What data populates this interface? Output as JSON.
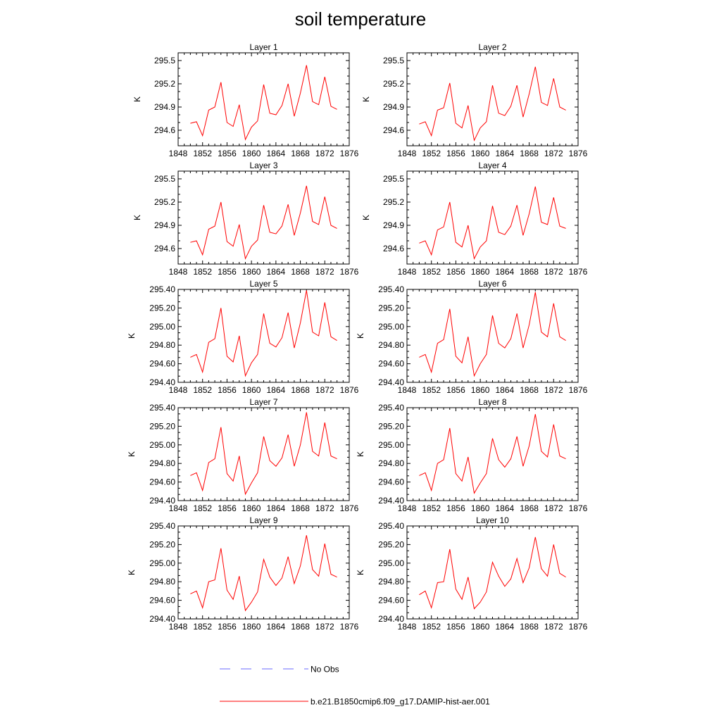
{
  "title": "soil temperature",
  "legend": [
    {
      "label": "No Obs",
      "color": "#6a6aff",
      "style": "dashed"
    },
    {
      "label": "b.e21.B1850cmip6.f09_g17.DAMIP-hist-aer.001",
      "color": "#ff0000",
      "style": "solid"
    }
  ],
  "chart_data": [
    {
      "type": "line",
      "title": "Layer 1",
      "ylabel": "K",
      "xlabel": "",
      "xlim": [
        1848,
        1876
      ],
      "ylim": [
        294.4,
        295.6
      ],
      "x_ticks": [
        "1848",
        "1852",
        "1856",
        "1860",
        "1864",
        "1868",
        "1872",
        "1876"
      ],
      "y_ticks": [
        "294.6",
        "294.9",
        "295.2",
        "295.5"
      ],
      "series": [
        {
          "color": "#ff0000",
          "x": [
            1850,
            1851,
            1852,
            1853,
            1854,
            1855,
            1856,
            1857,
            1858,
            1859,
            1860,
            1861,
            1862,
            1863,
            1864,
            1865,
            1866,
            1867,
            1868,
            1869,
            1870,
            1871,
            1872,
            1873,
            1874
          ],
          "y": [
            294.69,
            294.71,
            294.53,
            294.86,
            294.9,
            295.22,
            294.7,
            294.65,
            294.93,
            294.48,
            294.64,
            294.72,
            295.19,
            294.82,
            294.8,
            294.92,
            295.2,
            294.78,
            295.08,
            295.44,
            294.97,
            294.93,
            295.29,
            294.91,
            294.87
          ]
        }
      ]
    },
    {
      "type": "line",
      "title": "Layer 2",
      "ylabel": "K",
      "xlabel": "",
      "xlim": [
        1848,
        1876
      ],
      "ylim": [
        294.4,
        295.6
      ],
      "x_ticks": [
        "1848",
        "1852",
        "1856",
        "1860",
        "1864",
        "1868",
        "1872",
        "1876"
      ],
      "y_ticks": [
        "294.6",
        "294.9",
        "295.2",
        "295.5"
      ],
      "series": [
        {
          "color": "#ff0000",
          "x": [
            1850,
            1851,
            1852,
            1853,
            1854,
            1855,
            1856,
            1857,
            1858,
            1859,
            1860,
            1861,
            1862,
            1863,
            1864,
            1865,
            1866,
            1867,
            1868,
            1869,
            1870,
            1871,
            1872,
            1873,
            1874
          ],
          "y": [
            294.68,
            294.71,
            294.53,
            294.86,
            294.89,
            295.21,
            294.69,
            294.63,
            294.92,
            294.47,
            294.63,
            294.71,
            295.18,
            294.82,
            294.79,
            294.91,
            295.18,
            294.77,
            295.07,
            295.42,
            294.96,
            294.92,
            295.27,
            294.9,
            294.86
          ]
        }
      ]
    },
    {
      "type": "line",
      "title": "Layer 3",
      "ylabel": "K",
      "xlabel": "",
      "xlim": [
        1848,
        1876
      ],
      "ylim": [
        294.4,
        295.6
      ],
      "x_ticks": [
        "1848",
        "1852",
        "1856",
        "1860",
        "1864",
        "1868",
        "1872",
        "1876"
      ],
      "y_ticks": [
        "294.6",
        "294.9",
        "295.2",
        "295.5"
      ],
      "series": [
        {
          "color": "#ff0000",
          "x": [
            1850,
            1851,
            1852,
            1853,
            1854,
            1855,
            1856,
            1857,
            1858,
            1859,
            1860,
            1861,
            1862,
            1863,
            1864,
            1865,
            1866,
            1867,
            1868,
            1869,
            1870,
            1871,
            1872,
            1873,
            1874
          ],
          "y": [
            294.68,
            294.7,
            294.52,
            294.85,
            294.89,
            295.2,
            294.69,
            294.63,
            294.91,
            294.47,
            294.63,
            294.71,
            295.16,
            294.81,
            294.79,
            294.89,
            295.17,
            294.77,
            295.06,
            295.41,
            294.95,
            294.91,
            295.27,
            294.9,
            294.86
          ]
        }
      ]
    },
    {
      "type": "line",
      "title": "Layer 4",
      "ylabel": "K",
      "xlabel": "",
      "xlim": [
        1848,
        1876
      ],
      "ylim": [
        294.4,
        295.6
      ],
      "x_ticks": [
        "1848",
        "1852",
        "1856",
        "1860",
        "1864",
        "1868",
        "1872",
        "1876"
      ],
      "y_ticks": [
        "294.6",
        "294.9",
        "295.2",
        "295.5"
      ],
      "series": [
        {
          "color": "#ff0000",
          "x": [
            1850,
            1851,
            1852,
            1853,
            1854,
            1855,
            1856,
            1857,
            1858,
            1859,
            1860,
            1861,
            1862,
            1863,
            1864,
            1865,
            1866,
            1867,
            1868,
            1869,
            1870,
            1871,
            1872,
            1873,
            1874
          ],
          "y": [
            294.67,
            294.7,
            294.52,
            294.84,
            294.88,
            295.2,
            294.68,
            294.62,
            294.9,
            294.47,
            294.62,
            294.7,
            295.15,
            294.81,
            294.78,
            294.89,
            295.16,
            294.77,
            295.05,
            295.4,
            294.94,
            294.91,
            295.26,
            294.89,
            294.86
          ]
        }
      ]
    },
    {
      "type": "line",
      "title": "Layer 5",
      "ylabel": "K",
      "xlabel": "",
      "xlim": [
        1848,
        1876
      ],
      "ylim": [
        294.4,
        295.4
      ],
      "x_ticks": [
        "1848",
        "1852",
        "1856",
        "1860",
        "1864",
        "1868",
        "1872",
        "1876"
      ],
      "y_ticks": [
        "294.40",
        "294.60",
        "294.80",
        "295.00",
        "295.20",
        "295.40"
      ],
      "series": [
        {
          "color": "#ff0000",
          "x": [
            1850,
            1851,
            1852,
            1853,
            1854,
            1855,
            1856,
            1857,
            1858,
            1859,
            1860,
            1861,
            1862,
            1863,
            1864,
            1865,
            1866,
            1867,
            1868,
            1869,
            1870,
            1871,
            1872,
            1873,
            1874
          ],
          "y": [
            294.67,
            294.7,
            294.51,
            294.83,
            294.87,
            295.2,
            294.68,
            294.62,
            294.9,
            294.47,
            294.61,
            294.7,
            295.14,
            294.82,
            294.78,
            294.88,
            295.15,
            294.77,
            295.04,
            295.39,
            294.94,
            294.9,
            295.26,
            294.89,
            294.85
          ]
        }
      ]
    },
    {
      "type": "line",
      "title": "Layer 6",
      "ylabel": "K",
      "xlabel": "",
      "xlim": [
        1848,
        1876
      ],
      "ylim": [
        294.4,
        295.4
      ],
      "x_ticks": [
        "1848",
        "1852",
        "1856",
        "1860",
        "1864",
        "1868",
        "1872",
        "1876"
      ],
      "y_ticks": [
        "294.40",
        "294.60",
        "294.80",
        "295.00",
        "295.20",
        "295.40"
      ],
      "series": [
        {
          "color": "#ff0000",
          "x": [
            1850,
            1851,
            1852,
            1853,
            1854,
            1855,
            1856,
            1857,
            1858,
            1859,
            1860,
            1861,
            1862,
            1863,
            1864,
            1865,
            1866,
            1867,
            1868,
            1869,
            1870,
            1871,
            1872,
            1873,
            1874
          ],
          "y": [
            294.67,
            294.7,
            294.51,
            294.82,
            294.86,
            295.19,
            294.68,
            294.61,
            294.89,
            294.47,
            294.6,
            294.7,
            295.12,
            294.82,
            294.77,
            294.87,
            295.14,
            294.77,
            295.02,
            295.37,
            294.94,
            294.89,
            295.25,
            294.89,
            294.85
          ]
        }
      ]
    },
    {
      "type": "line",
      "title": "Layer 7",
      "ylabel": "K",
      "xlabel": "",
      "xlim": [
        1848,
        1876
      ],
      "ylim": [
        294.4,
        295.4
      ],
      "x_ticks": [
        "1848",
        "1852",
        "1856",
        "1860",
        "1864",
        "1868",
        "1872",
        "1876"
      ],
      "y_ticks": [
        "294.40",
        "294.60",
        "294.80",
        "295.00",
        "295.20",
        "295.40"
      ],
      "series": [
        {
          "color": "#ff0000",
          "x": [
            1850,
            1851,
            1852,
            1853,
            1854,
            1855,
            1856,
            1857,
            1858,
            1859,
            1860,
            1861,
            1862,
            1863,
            1864,
            1865,
            1866,
            1867,
            1868,
            1869,
            1870,
            1871,
            1872,
            1873,
            1874
          ],
          "y": [
            294.67,
            294.7,
            294.51,
            294.81,
            294.85,
            295.19,
            294.69,
            294.61,
            294.88,
            294.47,
            294.59,
            294.7,
            295.09,
            294.83,
            294.77,
            294.86,
            295.11,
            294.77,
            295.0,
            295.35,
            294.93,
            294.88,
            295.24,
            294.88,
            294.85
          ]
        }
      ]
    },
    {
      "type": "line",
      "title": "Layer 8",
      "ylabel": "K",
      "xlabel": "",
      "xlim": [
        1848,
        1876
      ],
      "ylim": [
        294.4,
        295.4
      ],
      "x_ticks": [
        "1848",
        "1852",
        "1856",
        "1860",
        "1864",
        "1868",
        "1872",
        "1876"
      ],
      "y_ticks": [
        "294.40",
        "294.60",
        "294.80",
        "295.00",
        "295.20",
        "295.40"
      ],
      "series": [
        {
          "color": "#ff0000",
          "x": [
            1850,
            1851,
            1852,
            1853,
            1854,
            1855,
            1856,
            1857,
            1858,
            1859,
            1860,
            1861,
            1862,
            1863,
            1864,
            1865,
            1866,
            1867,
            1868,
            1869,
            1870,
            1871,
            1872,
            1873,
            1874
          ],
          "y": [
            294.67,
            294.7,
            294.51,
            294.8,
            294.84,
            295.18,
            294.69,
            294.61,
            294.87,
            294.48,
            294.59,
            294.69,
            295.07,
            294.84,
            294.76,
            294.85,
            295.09,
            294.77,
            294.99,
            295.33,
            294.93,
            294.87,
            295.22,
            294.88,
            294.85
          ]
        }
      ]
    },
    {
      "type": "line",
      "title": "Layer 9",
      "ylabel": "K",
      "xlabel": "",
      "xlim": [
        1848,
        1876
      ],
      "ylim": [
        294.4,
        295.4
      ],
      "x_ticks": [
        "1848",
        "1852",
        "1856",
        "1860",
        "1864",
        "1868",
        "1872",
        "1876"
      ],
      "y_ticks": [
        "294.40",
        "294.60",
        "294.80",
        "295.00",
        "295.20",
        "295.40"
      ],
      "series": [
        {
          "color": "#ff0000",
          "x": [
            1850,
            1851,
            1852,
            1853,
            1854,
            1855,
            1856,
            1857,
            1858,
            1859,
            1860,
            1861,
            1862,
            1863,
            1864,
            1865,
            1866,
            1867,
            1868,
            1869,
            1870,
            1871,
            1872,
            1873,
            1874
          ],
          "y": [
            294.67,
            294.7,
            294.52,
            294.8,
            294.82,
            295.16,
            294.71,
            294.61,
            294.86,
            294.49,
            294.58,
            294.69,
            295.04,
            294.85,
            294.76,
            294.84,
            295.07,
            294.78,
            294.97,
            295.3,
            294.93,
            294.86,
            295.21,
            294.88,
            294.85
          ]
        }
      ]
    },
    {
      "type": "line",
      "title": "Layer 10",
      "ylabel": "K",
      "xlabel": "",
      "xlim": [
        1848,
        1876
      ],
      "ylim": [
        294.4,
        295.4
      ],
      "x_ticks": [
        "1848",
        "1852",
        "1856",
        "1860",
        "1864",
        "1868",
        "1872",
        "1876"
      ],
      "y_ticks": [
        "294.40",
        "294.60",
        "294.80",
        "295.00",
        "295.20",
        "295.40"
      ],
      "series": [
        {
          "color": "#ff0000",
          "x": [
            1850,
            1851,
            1852,
            1853,
            1854,
            1855,
            1856,
            1857,
            1858,
            1859,
            1860,
            1861,
            1862,
            1863,
            1864,
            1865,
            1866,
            1867,
            1868,
            1869,
            1870,
            1871,
            1872,
            1873,
            1874
          ],
          "y": [
            294.66,
            294.7,
            294.52,
            294.79,
            294.8,
            295.15,
            294.72,
            294.61,
            294.85,
            294.51,
            294.58,
            294.69,
            295.01,
            294.86,
            294.75,
            294.83,
            295.05,
            294.79,
            294.95,
            295.28,
            294.94,
            294.86,
            295.2,
            294.89,
            294.85
          ]
        }
      ]
    }
  ]
}
